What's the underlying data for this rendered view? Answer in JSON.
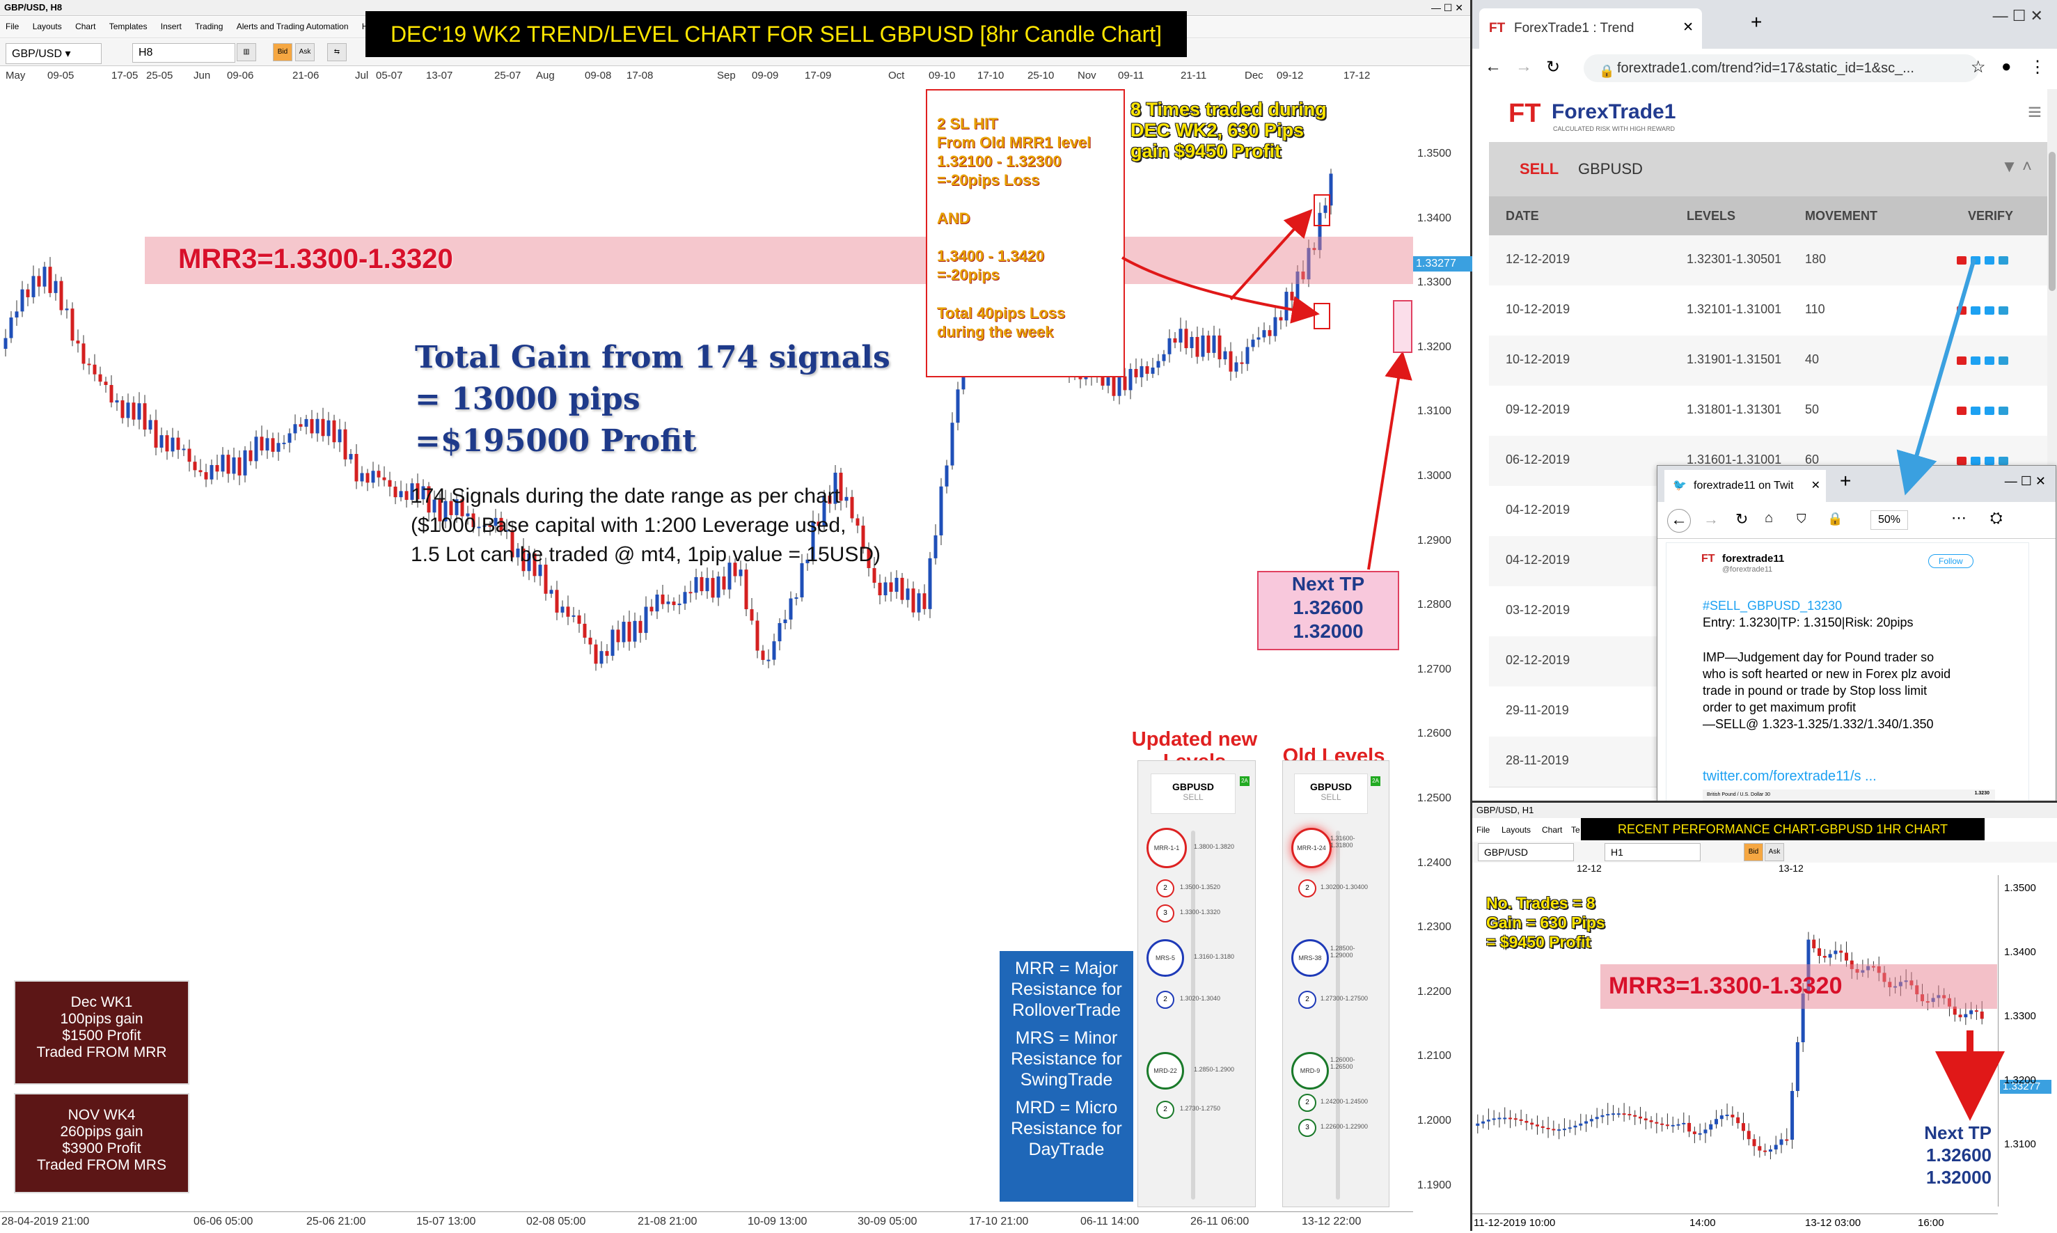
{
  "main": {
    "window_title": "GBP/USD, H8",
    "menu": [
      "File",
      "Layouts",
      "Chart",
      "Templates",
      "Insert",
      "Trading",
      "Alerts and Trading Automation",
      "Help"
    ],
    "symbol": "GBP/USD",
    "timeframe": "H8",
    "bid_label": "Bid",
    "ask_label": "Ask",
    "banner": "DEC'19 WK2 TREND/LEVEL CHART FOR SELL GBPUSD [8hr Candle Chart]",
    "date_ticks": [
      "May",
      "09-05",
      "17-05",
      "25-05",
      "Jun",
      "09-06",
      "21-06",
      "Jul",
      "05-07",
      "13-07",
      "25-07",
      "Aug",
      "09-08",
      "17-08",
      "Sep",
      "09-09",
      "17-09",
      "Oct",
      "09-10",
      "17-10",
      "25-10",
      "Nov",
      "09-11",
      "21-11",
      "Dec",
      "09-12",
      "17-12"
    ],
    "bottom_ticks": [
      "28-04-2019 21:00",
      "06-06 05:00",
      "25-06 21:00",
      "15-07 13:00",
      "02-08 05:00",
      "21-08 21:00",
      "10-09 13:00",
      "30-09 05:00",
      "17-10 21:00",
      "06-11 14:00",
      "26-11 06:00",
      "13-12 22:00"
    ],
    "price_ticks": [
      "1.3500",
      "1.3400",
      "1.3300",
      "1.3200",
      "1.3100",
      "1.3000",
      "1.2900",
      "1.2800",
      "1.2700",
      "1.2600",
      "1.2500",
      "1.2400",
      "1.2300",
      "1.2200",
      "1.2100",
      "1.2000",
      "1.1900"
    ],
    "current_price": "1.33277",
    "mrr3_label": "MRR3=1.3300-1.3320",
    "gain_lines": [
      "Total Gain from 174 signals",
      "= 13000 pips",
      "=$195000 Profit"
    ],
    "signals_lines": [
      "174 Signals during the date range as per chart",
      "($1000 Base capital with 1:200 Leverage used,",
      "1.5 Lot can be traded @ mt4, 1pip value = 15USD)"
    ],
    "sl_box_lines": [
      "2 SL HIT",
      "From Old MRR1 level",
      "1.32100 - 1.32300",
      "=-20pips Loss",
      "",
      "AND",
      "",
      "1.3400 - 1.3420",
      "=-20pips",
      "",
      "Total 40pips Loss",
      "during the week"
    ],
    "eight_times": [
      "8 Times traded during",
      "DEC WK2, 630 Pips",
      "gain $9450 Profit"
    ],
    "next_tp": [
      "Next TP",
      "1.32600",
      "1.32000"
    ],
    "dec_wk1": [
      "Dec WK1",
      "100pips gain",
      "$1500 Profit",
      "Traded FROM MRR"
    ],
    "nov_wk4": [
      "NOV WK4",
      "260pips gain",
      "$3900 Profit",
      "Traded FROM MRS"
    ],
    "legend": [
      "MRR = Major Resistance for RolloverTrade",
      "MRS = Minor Resistance for SwingTrade",
      "MRD = Micro Resistance for DayTrade"
    ],
    "updated_levels_label": "Updated new Levels",
    "old_levels_label": "Old Levels",
    "updated_panel": {
      "pair": "GBPUSD",
      "side": "SELL",
      "badge": "2A",
      "mrr": "MRR-1-1",
      "mrr_level": "1.3800-1.3820",
      "l2": "1.3500-1.3520",
      "l3": "1.3300-1.3320",
      "mrs": "MRS-5",
      "mrs_level": "1.3160-1.3180",
      "l4": "1.3020-1.3040",
      "mrd": "MRD-22",
      "mrd_level": "1.2850-1.2900",
      "l5": "1.2730-1.2750"
    },
    "old_panel": {
      "pair": "GBPUSD",
      "side": "SELL",
      "badge": "2A",
      "mrr": "MRR-1-24",
      "mrr_level": "1.31600-1.31800",
      "l2": "1.30200-1.30400",
      "mrs": "MRS-38",
      "mrs_level": "1.28500-1.29000",
      "l3": "1.27300-1.27500",
      "mrd": "MRD-9",
      "mrd_level": "1.26000-1.26500",
      "l4": "1.24200-1.24500",
      "l5": "1.22600-1.22900"
    }
  },
  "browser": {
    "tab_title": "ForexTrade1 : Trend",
    "url": "forextrade1.com/trend?id=17&static_id=1&sc_...",
    "brand": "ForexTrade1",
    "tagline": "CALCULATED RISK WITH HIGH REWARD",
    "filter_side": "SELL",
    "filter_pair": "GBPUSD",
    "columns": [
      "DATE",
      "LEVELS",
      "MOVEMENT",
      "VERIFY"
    ],
    "rows": [
      {
        "date": "12-12-2019",
        "levels": "1.32301-1.30501",
        "movement": "180"
      },
      {
        "date": "10-12-2019",
        "levels": "1.32101-1.31001",
        "movement": "110"
      },
      {
        "date": "10-12-2019",
        "levels": "1.31901-1.31501",
        "movement": "40"
      },
      {
        "date": "09-12-2019",
        "levels": "1.31801-1.31301",
        "movement": "50"
      },
      {
        "date": "06-12-2019",
        "levels": "1.31601-1.31001",
        "movement": "60"
      },
      {
        "date": "04-12-2019",
        "levels": "",
        "movement": ""
      },
      {
        "date": "04-12-2019",
        "levels": "",
        "movement": ""
      },
      {
        "date": "03-12-2019",
        "levels": "",
        "movement": ""
      },
      {
        "date": "02-12-2019",
        "levels": "",
        "movement": ""
      },
      {
        "date": "29-11-2019",
        "levels": "",
        "movement": ""
      },
      {
        "date": "28-11-2019",
        "levels": "",
        "movement": ""
      }
    ]
  },
  "twitter": {
    "tab_title": "forextrade11 on Twit",
    "zoom": "50%",
    "user": "forextrade11",
    "handle": "@forextrade11",
    "follow": "Follow",
    "hashtag": "#SELL_GBPUSD_13230",
    "entry": "Entry: 1.3230|TP: 1.3150|Risk: 20pips",
    "body": [
      "IMP—Judgement day for Pound trader so",
      "who is soft hearted or new in Forex plz avoid",
      "trade in pound or trade by Stop loss limit",
      "order to get maximum profit",
      "—SELL@ 1.323-1.325/1.332/1.340/1.350"
    ],
    "link": "twitter.com/forextrade11/s ...",
    "img_text": "British Pound / U.S. Dollar 30",
    "img_price": "1.3230"
  },
  "h1": {
    "window_title": "GBP/USD, H1",
    "menu": [
      "File",
      "Layouts",
      "Chart",
      "Te"
    ],
    "banner": "RECENT PERFORMANCE CHART-GBPUSD 1HR CHART",
    "symbol": "GBP/USD",
    "timeframe": "H1",
    "bid_label": "Bid",
    "ask_label": "Ask",
    "date_ticks": [
      "12-12",
      "13-12"
    ],
    "price_ticks": [
      "1.3500",
      "1.3400",
      "1.3300",
      "1.3200",
      "1.3100"
    ],
    "current_price": "1.33277",
    "bottom_ticks": [
      "11-12-2019 10:00",
      "14:00",
      "13-12 03:00",
      "16:00"
    ],
    "stats": [
      "No. Trades = 8",
      "Gain = 630 Pips",
      "= $9450 Profit"
    ],
    "mrr3_label": "MRR3=1.3300-1.3320",
    "next_tp": [
      "Next TP",
      "1.32600",
      "1.32000"
    ]
  }
}
